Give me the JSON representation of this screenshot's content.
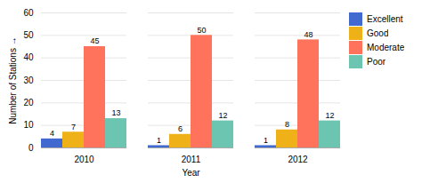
{
  "chart_data": {
    "type": "bar",
    "categories": [
      "2010",
      "2011",
      "2012"
    ],
    "series": [
      {
        "name": "Excellent",
        "values": [
          4,
          1,
          1
        ]
      },
      {
        "name": "Good",
        "values": [
          7,
          6,
          8
        ]
      },
      {
        "name": "Moderate",
        "values": [
          45,
          50,
          48
        ]
      },
      {
        "name": "Poor",
        "values": [
          13,
          12,
          12
        ]
      }
    ],
    "xlabel": "Year",
    "ylabel": "Number of Stations",
    "ylim": [
      0,
      60
    ],
    "yticks": [
      0,
      10,
      20,
      30,
      40,
      50,
      60
    ],
    "grid": true,
    "legend": "right",
    "data_labels": true
  }
}
